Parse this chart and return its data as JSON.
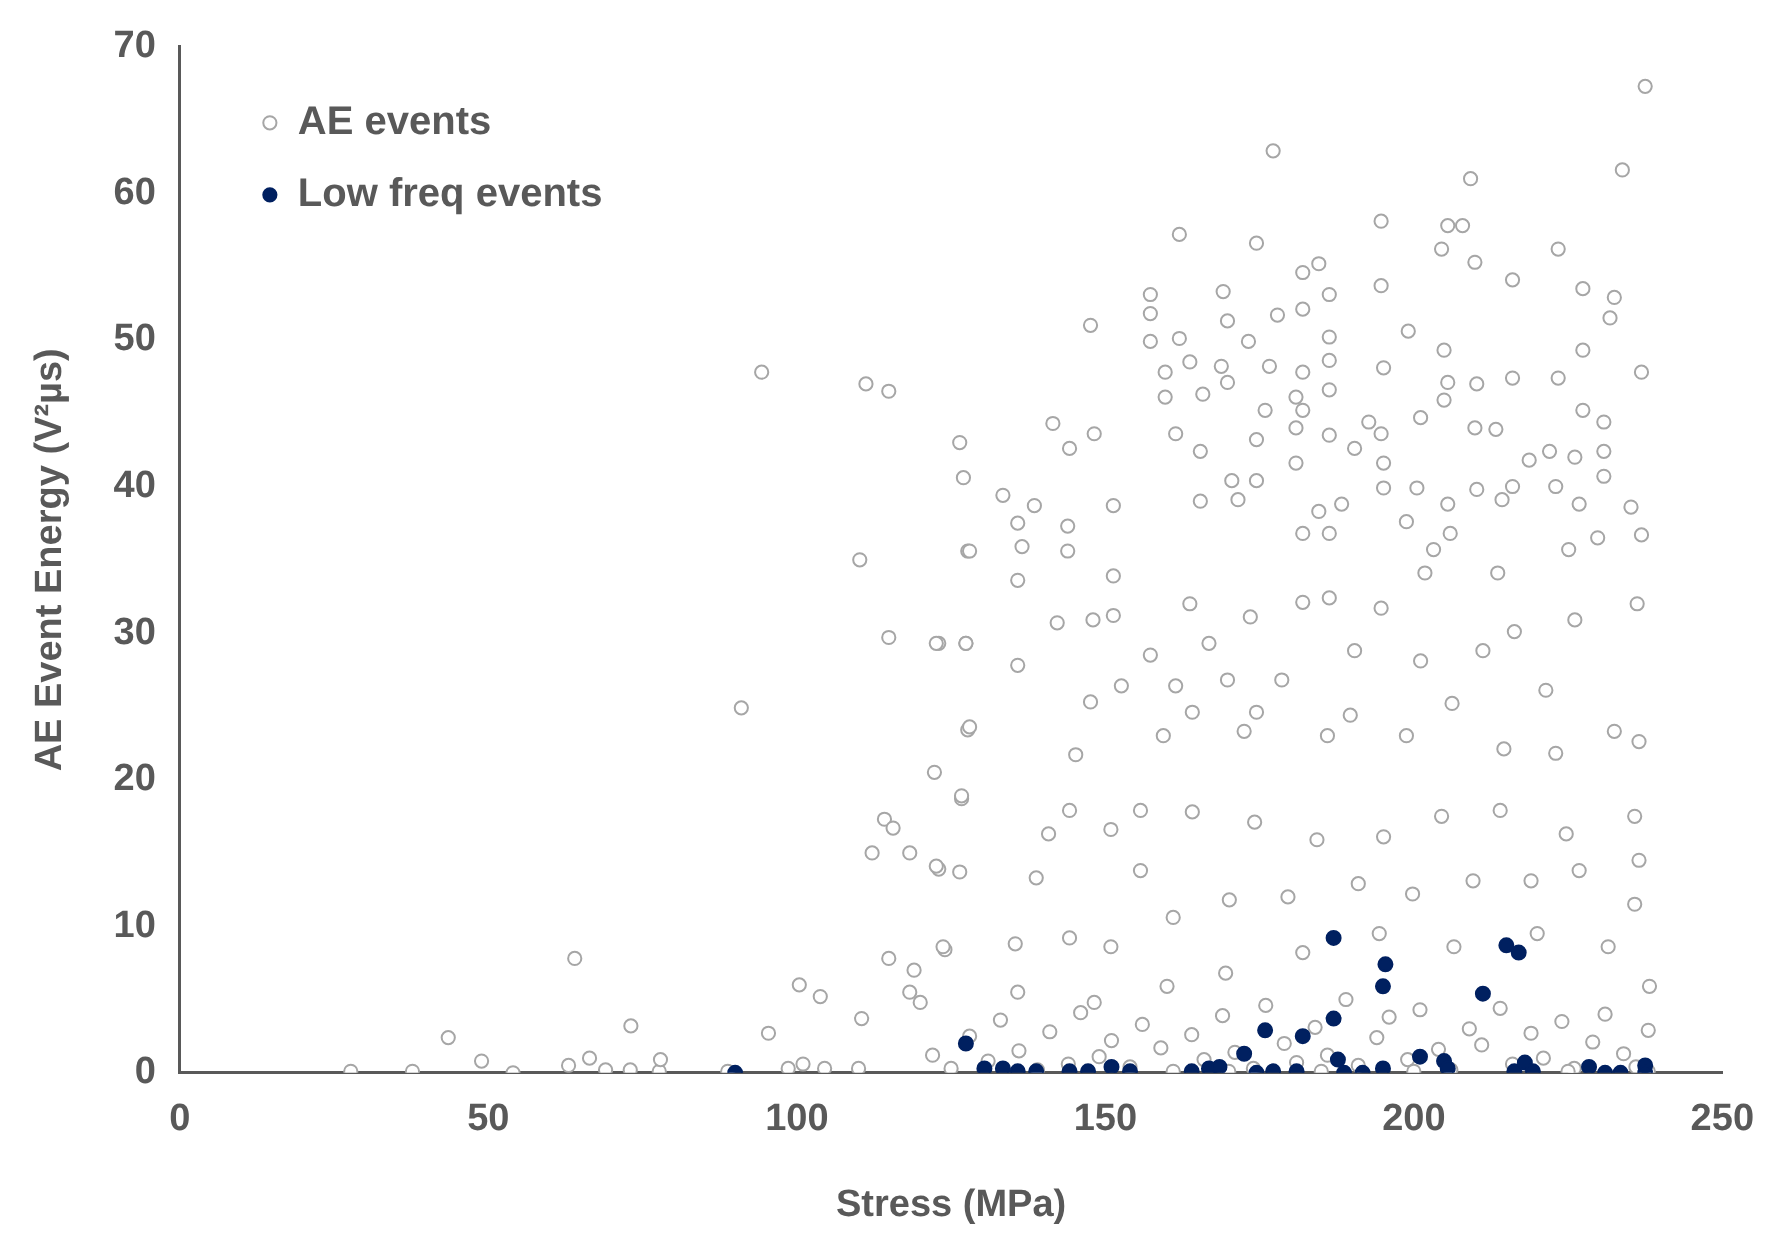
{
  "chart_data": {
    "type": "scatter",
    "xlabel": "Stress (MPa)",
    "ylabel": "AE Event Energy (V²µs)",
    "xlim": [
      0,
      250
    ],
    "xticks": [
      0,
      50,
      100,
      150,
      200,
      250
    ],
    "ylim": [
      0,
      70
    ],
    "yticks": [
      0,
      10,
      20,
      30,
      40,
      50,
      60,
      70
    ],
    "grid": false,
    "legend": "top left",
    "marker": "circle",
    "series": [
      {
        "name": "AE events",
        "color": "#a6a6a6",
        "x": [
          94.3,
          111.2,
          114.9,
          126.4,
          127,
          110.2,
          127.7,
          114.9,
          123,
          127.4,
          91,
          127.7,
          122.3,
          126.7,
          114.2,
          115.6,
          112.2,
          118.3,
          123,
          126.4,
          124,
          64,
          114.9,
          119,
          100.4,
          103.8,
          118.3,
          120,
          73.1,
          95.4,
          110.5,
          43.5,
          48.9,
          27.7,
          37.7,
          54,
          63,
          66.4,
          69,
          73,
          77.7,
          77.9,
          88.8,
          98.6,
          101,
          104.5,
          110,
          237.5,
          177.2,
          209.2,
          233.8,
          194.7,
          205.5,
          207.9,
          162,
          174.5,
          204.5,
          223.4,
          209.9,
          182,
          184.6,
          216,
          227.4,
          232.5,
          157.3,
          194.7,
          169.1,
          186.3,
          157.3,
          182,
          231.8,
          147.6,
          169.8,
          177.9,
          186.3,
          199.1,
          157.3,
          162,
          173.2,
          204.9,
          227.4,
          236.9,
          163.7,
          168.8,
          176.6,
          182,
          186.3,
          195.1,
          216,
          223.4,
          159.7,
          169.8,
          205.5,
          210.2,
          159.7,
          165.8,
          180.9,
          186.3,
          204.9,
          175.9,
          182,
          227.4,
          230.8,
          141.5,
          148.2,
          144.2,
          161.4,
          165.4,
          174.5,
          180.9,
          186.3,
          190.4,
          192.7,
          194.7,
          201.1,
          209.9,
          213.3,
          218.7,
          222,
          226.1,
          230.8,
          133.4,
          138.5,
          151.3,
          170.5,
          174.5,
          180.9,
          195.1,
          195.1,
          200.5,
          210.2,
          216,
          223,
          230.8,
          165.4,
          171.5,
          184.6,
          188.3,
          205.5,
          214.3,
          226.8,
          235.2,
          135.8,
          143.9,
          182,
          186.3,
          198.8,
          205.9,
          229.8,
          236.9,
          128,
          136.5,
          143.9,
          135.8,
          151.3,
          122.6,
          127.4,
          128,
          126.7,
          122.6,
          135.8,
          142.2,
          148,
          151.3,
          147.6,
          140.8,
          138.8,
          144.2,
          150.9,
          155.7,
          163.7,
          166.8,
          173.5,
          182,
          186.3,
          194.7,
          201.8,
          203.2,
          213.6,
          225.1,
          236.2,
          226.1,
          216.3,
          211.2,
          201.1,
          190.4,
          178.6,
          169.8,
          161.4,
          157.3,
          152.6,
          164.1,
          174.5,
          189.7,
          206.2,
          221.4,
          232.5,
          236.5,
          223,
          214.6,
          198.8,
          186,
          172.5,
          159.4,
          145.2,
          155.7,
          164.1,
          174.2,
          184.3,
          195.1,
          204.5,
          214,
          224.7,
          235.8,
          236.5,
          226.8,
          219,
          209.6,
          199.8,
          191,
          179.6,
          170.1,
          161,
          150.9,
          144.2,
          135.4,
          123.7,
          135.8,
          148.2,
          160,
          169.5,
          182,
          194.4,
          206.5,
          220,
          231.5,
          235.8,
          238.2,
          122,
          125,
          128,
          131,
          133,
          136,
          139,
          141,
          144,
          146,
          149,
          151,
          154,
          156,
          159,
          161,
          164,
          166,
          169,
          171,
          174,
          176,
          179,
          181,
          184,
          186,
          189,
          191,
          194,
          196,
          199,
          201,
          204,
          206,
          209,
          211,
          214,
          216,
          219,
          221,
          224,
          226,
          229,
          231,
          234,
          236,
          238,
          238,
          170,
          200,
          225,
          185
        ],
        "values": [
          47.8,
          47.0,
          46.5,
          43.0,
          40.6,
          35.0,
          35.6,
          29.7,
          29.3,
          29.3,
          24.9,
          23.4,
          20.5,
          18.7,
          17.3,
          16.7,
          15.0,
          15.0,
          13.9,
          13.7,
          8.4,
          7.8,
          7.8,
          7.0,
          6.0,
          5.2,
          5.5,
          4.8,
          3.2,
          2.7,
          3.7,
          2.4,
          0.8,
          0.1,
          0.1,
          0,
          0.5,
          1.0,
          0.2,
          0.2,
          0.1,
          0.9,
          0.1,
          0.3,
          0.6,
          0.3,
          0.3,
          67.3,
          62.9,
          61.0,
          61.6,
          58.1,
          57.8,
          57.8,
          57.2,
          56.6,
          56.2,
          56.2,
          55.3,
          54.6,
          55.2,
          54.1,
          53.5,
          52.9,
          53.1,
          53.7,
          53.3,
          53.1,
          51.8,
          52.1,
          51.5,
          51.0,
          51.3,
          51.7,
          50.2,
          50.6,
          49.9,
          50.1,
          49.9,
          49.3,
          49.3,
          47.8,
          48.5,
          48.2,
          48.2,
          47.8,
          48.6,
          48.1,
          47.4,
          47.4,
          47.8,
          47.1,
          47.1,
          47.0,
          46.1,
          46.3,
          46.1,
          46.6,
          45.9,
          45.2,
          45.2,
          45.2,
          44.4,
          44.3,
          43.6,
          42.6,
          43.6,
          42.4,
          43.2,
          44.0,
          43.5,
          42.6,
          44.4,
          43.6,
          44.7,
          44.0,
          43.9,
          41.8,
          42.4,
          42.0,
          42.4,
          39.4,
          38.7,
          38.7,
          40.4,
          40.4,
          41.6,
          41.6,
          39.9,
          39.9,
          39.8,
          40.0,
          40.0,
          40.7,
          39.0,
          39.1,
          38.3,
          38.8,
          38.8,
          39.1,
          38.8,
          38.6,
          37.5,
          37.3,
          36.8,
          36.8,
          37.6,
          36.8,
          36.5,
          36.7,
          35.6,
          35.9,
          35.6,
          33.6,
          33.9,
          29.3,
          29.3,
          23.6,
          18.9,
          14.1,
          27.8,
          30.7,
          30.9,
          31.2,
          25.3,
          16.3,
          13.3,
          17.9,
          16.6,
          13.8,
          32.0,
          29.3,
          31.1,
          32.1,
          32.4,
          31.7,
          34.1,
          35.7,
          34.1,
          35.7,
          32.0,
          30.9,
          30.1,
          28.8,
          28.1,
          28.8,
          26.8,
          26.8,
          26.4,
          28.5,
          26.4,
          24.6,
          24.6,
          24.4,
          25.2,
          26.1,
          23.3,
          22.6,
          21.8,
          22.1,
          23.0,
          23.0,
          23.3,
          23.0,
          21.7,
          17.9,
          17.8,
          17.1,
          15.9,
          16.1,
          17.5,
          17.9,
          16.3,
          17.5,
          14.5,
          13.8,
          13.1,
          13.1,
          12.2,
          12.9,
          12.0,
          11.8,
          10.6,
          8.6,
          9.2,
          8.8,
          8.6,
          5.5,
          4.8,
          5.9,
          6.8,
          8.2,
          9.5,
          8.6,
          9.5,
          8.6,
          11.5,
          5.9,
          1.2,
          0.3,
          2.5,
          0.8,
          3.6,
          1.5,
          0.2,
          2.8,
          0.6,
          4.1,
          1.1,
          2.2,
          0.4,
          3.3,
          1.7,
          0.1,
          2.6,
          0.9,
          3.9,
          1.4,
          0.3,
          4.6,
          2.0,
          0.7,
          3.1,
          1.2,
          5.0,
          0.5,
          2.4,
          3.8,
          0.9,
          4.3,
          1.6,
          0.2,
          3.0,
          1.9,
          4.4,
          0.6,
          2.7,
          1.0,
          3.5,
          0.3,
          2.1,
          4.0,
          1.3,
          0.4,
          2.9,
          0.1,
          0.1,
          0.1,
          0.1,
          0.1
        ]
      },
      {
        "name": "Low freq events",
        "color": "#002060",
        "x": [
          90,
          127.4,
          130.4,
          133.4,
          135.8,
          138.8,
          144.2,
          147.2,
          151,
          154,
          164,
          166.8,
          168.5,
          172.5,
          174.5,
          175.9,
          177.2,
          181,
          182,
          187,
          187,
          187.7,
          188.7,
          191.7,
          195,
          195.4,
          195,
          201,
          204.9,
          205.5,
          211.2,
          215,
          217,
          216.3,
          218,
          219.3,
          228.4,
          231,
          233.5,
          237.5,
          237.5
        ],
        "values": [
          0,
          2.0,
          0.3,
          0.3,
          0.1,
          0.1,
          0.1,
          0.1,
          0.4,
          0.1,
          0.1,
          0.3,
          0.4,
          1.3,
          0,
          2.9,
          0.1,
          0.1,
          2.5,
          9.2,
          3.7,
          0.9,
          0,
          0,
          0.3,
          7.4,
          5.9,
          1.1,
          0.8,
          0.3,
          5.4,
          8.7,
          8.2,
          0.1,
          0.7,
          0.1,
          0.4,
          0,
          0,
          0.5,
          0
        ]
      }
    ]
  }
}
